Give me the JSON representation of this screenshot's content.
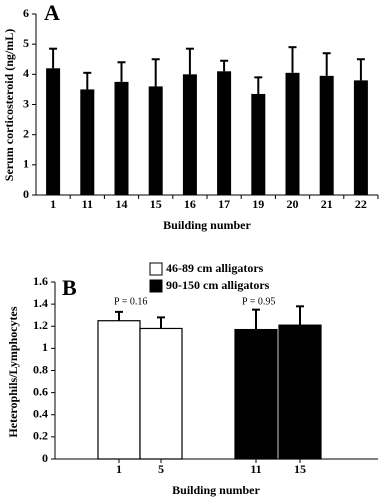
{
  "chart_data": [
    {
      "type": "bar",
      "panel_label": "A",
      "ylabel": "Serum corticosteroid (ng/mL)",
      "xlabel": "Building number",
      "categories": [
        "1",
        "11",
        "14",
        "15",
        "16",
        "17",
        "19",
        "20",
        "21",
        "22"
      ],
      "values": [
        4.2,
        3.5,
        3.75,
        3.6,
        4.0,
        4.1,
        3.35,
        4.05,
        3.95,
        3.8
      ],
      "errors": [
        0.65,
        0.55,
        0.65,
        0.9,
        0.85,
        0.35,
        0.55,
        0.85,
        0.75,
        0.7
      ],
      "color": "#000000",
      "ylim": [
        0,
        6
      ],
      "yticks": [
        0,
        1,
        2,
        3,
        4,
        5,
        6
      ]
    },
    {
      "type": "grouped-bar",
      "panel_label": "B",
      "ylabel": "Heterophils/Lymphocytes",
      "xlabel": "Building number",
      "categories": [
        "1",
        "5",
        "11",
        "15"
      ],
      "series": [
        {
          "name": "46-89 cm alligators",
          "color": "#ffffff",
          "values": [
            1.25,
            1.18,
            null,
            null
          ],
          "errors": [
            0.08,
            0.1,
            null,
            null
          ]
        },
        {
          "name": "90-150 cm alligators",
          "color": "#000000",
          "values": [
            null,
            null,
            1.17,
            1.21
          ],
          "errors": [
            null,
            null,
            0.18,
            0.17
          ]
        }
      ],
      "annotations": [
        "P = 0.16",
        "P = 0.95"
      ],
      "ylim": [
        0,
        1.6
      ],
      "yticks": [
        0,
        0.2,
        0.4,
        0.6,
        0.8,
        1,
        1.2,
        1.4,
        1.6
      ]
    }
  ]
}
